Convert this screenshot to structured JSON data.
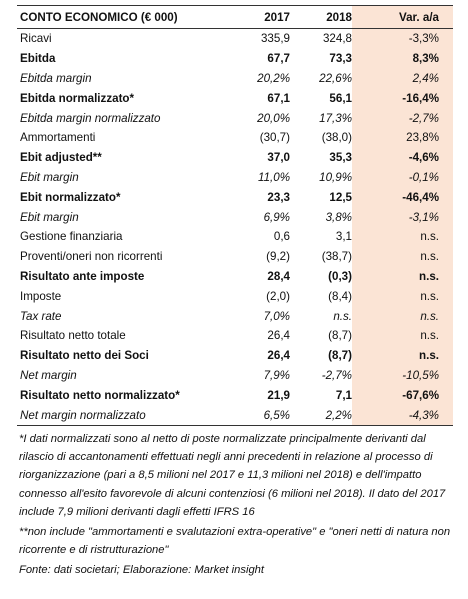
{
  "table": {
    "header": [
      "CONTO ECONOMICO (€ 000)",
      "2017",
      "2018",
      "Var. a/a"
    ],
    "rows": [
      {
        "cells": [
          "Ricavi",
          "335,9",
          "324,8",
          "-3,3%"
        ],
        "style": "normal"
      },
      {
        "cells": [
          "Ebitda",
          "67,7",
          "73,3",
          "8,3%"
        ],
        "style": "bold"
      },
      {
        "cells": [
          "Ebitda margin",
          "20,2%",
          "22,6%",
          "2,4%"
        ],
        "style": "italic"
      },
      {
        "cells": [
          "Ebitda normalizzato*",
          "67,1",
          "56,1",
          "-16,4%"
        ],
        "style": "bold"
      },
      {
        "cells": [
          "Ebitda margin normalizzato",
          "20,0%",
          "17,3%",
          "-2,7%"
        ],
        "style": "italic"
      },
      {
        "cells": [
          "Ammortamenti",
          "(30,7)",
          "(38,0)",
          "23,8%"
        ],
        "style": "normal"
      },
      {
        "cells": [
          "Ebit adjusted**",
          "37,0",
          "35,3",
          "-4,6%"
        ],
        "style": "bold"
      },
      {
        "cells": [
          "Ebit margin",
          "11,0%",
          "10,9%",
          "-0,1%"
        ],
        "style": "italic"
      },
      {
        "cells": [
          "Ebit normalizzato*",
          "23,3",
          "12,5",
          "-46,4%"
        ],
        "style": "bold"
      },
      {
        "cells": [
          "Ebit margin",
          "6,9%",
          "3,8%",
          "-3,1%"
        ],
        "style": "italic"
      },
      {
        "cells": [
          "Gestione finanziaria",
          "0,6",
          "3,1",
          "n.s."
        ],
        "style": "normal"
      },
      {
        "cells": [
          "Proventi/oneri non ricorrenti",
          "(9,2)",
          "(38,7)",
          "n.s."
        ],
        "style": "normal"
      },
      {
        "cells": [
          "Risultato ante imposte",
          "28,4",
          "(0,3)",
          "n.s."
        ],
        "style": "bold"
      },
      {
        "cells": [
          "Imposte",
          "(2,0)",
          "(8,4)",
          "n.s."
        ],
        "style": "normal"
      },
      {
        "cells": [
          "Tax rate",
          "7,0%",
          "n.s.",
          "n.s."
        ],
        "style": "italic"
      },
      {
        "cells": [
          "Risultato netto totale",
          "26,4",
          "(8,7)",
          "n.s."
        ],
        "style": "normal"
      },
      {
        "cells": [
          "Risultato netto dei Soci",
          "26,4",
          "(8,7)",
          "n.s."
        ],
        "style": "bold"
      },
      {
        "cells": [
          "Net margin",
          "7,9%",
          "-2,7%",
          "-10,5%"
        ],
        "style": "italic"
      },
      {
        "cells": [
          "Risultato netto normalizzato*",
          "21,9",
          "7,1",
          "-67,6%"
        ],
        "style": "bold"
      },
      {
        "cells": [
          "Net margin normalizzato",
          "6,5%",
          "2,2%",
          "-4,3%"
        ],
        "style": "italic"
      }
    ]
  },
  "notes": [
    "*I dati normalizzati sono al netto di poste normalizzate principalmente derivanti dal rilascio di accantonamenti effettuati negli anni precedenti in relazione al processo di riorganizzazione (pari a 8,5 milioni nel 2017 e 11,3 milioni nel 2018) e dell'impatto connesso all'esito favorevole di alcuni contenziosi (6 milioni nel 2018). Il dato del 2017 include 7,9 milioni derivanti dagli effetti IFRS 16",
    "**non include \"ammortamenti e svalutazioni extra-operative\" e \"oneri netti di natura non ricorrente e di ristrutturazione\""
  ],
  "source": "Fonte: dati societari; Elaborazione: Market insight"
}
